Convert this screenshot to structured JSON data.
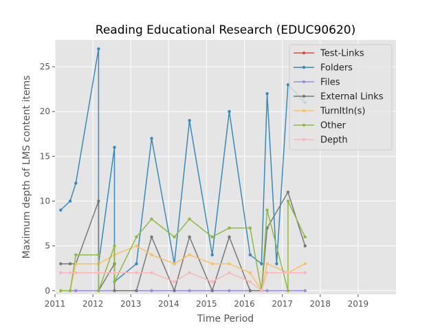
{
  "chart_data": {
    "type": "line",
    "title": "Reading Educational Research (EDUC90620)",
    "xlabel": "Time Period",
    "ylabel": "Maximum depth of LMS content items",
    "xlim": [
      2011.0,
      2020.0
    ],
    "ylim": [
      -0.4,
      28.0
    ],
    "xticks": [
      2011,
      2012,
      2013,
      2014,
      2015,
      2016,
      2017,
      2018,
      2019
    ],
    "yticks": [
      0,
      5,
      10,
      15,
      20,
      25
    ],
    "grid": true,
    "legend_position": "top-right",
    "series": [
      {
        "name": "Test-Links",
        "color": "#E24A33",
        "x": [
          2011.55,
          2012.15
        ],
        "y": [
          0,
          0
        ]
      },
      {
        "name": "Folders",
        "color": "#348ABD",
        "x": [
          2011.15,
          2011.4,
          2011.55,
          2012.15,
          2012.15,
          2012.57,
          2012.57,
          2013.15,
          2013.55,
          2014.15,
          2014.55,
          2015.15,
          2015.6,
          2016.15,
          2016.45,
          2016.6,
          2016.85,
          2017.15,
          2017.6
        ],
        "y": [
          9,
          10,
          12,
          27,
          3,
          16,
          1,
          3,
          17,
          3,
          19,
          4,
          20,
          4,
          3,
          22,
          3,
          23,
          21
        ]
      },
      {
        "name": "Files",
        "color": "#988ED5",
        "x": [
          2011.15,
          2011.4,
          2011.55,
          2012.15,
          2012.57,
          2013.15,
          2013.55,
          2014.15,
          2014.55,
          2015.15,
          2015.6,
          2016.15,
          2016.45,
          2016.6,
          2017.15,
          2017.6
        ],
        "y": [
          0,
          0,
          0,
          0,
          0,
          0,
          0,
          0,
          0,
          0,
          0,
          0,
          0,
          0,
          0,
          0
        ]
      },
      {
        "name": "External Links",
        "color": "#777777",
        "x": [
          2011.15,
          2011.4,
          2011.55,
          2012.15,
          2012.15,
          2012.57,
          2012.57,
          2013.15,
          2013.55,
          2014.15,
          2014.55,
          2015.15,
          2015.6,
          2016.15,
          2016.45,
          2016.6,
          2017.15,
          2017.6
        ],
        "y": [
          3,
          3,
          3,
          10,
          0,
          3,
          0,
          0,
          6,
          0,
          6,
          0,
          6,
          0,
          0,
          7,
          11,
          5
        ]
      },
      {
        "name": "TurnItIn(s)",
        "color": "#FBC15E",
        "x": [
          2011.15,
          2011.4,
          2011.55,
          2012.15,
          2012.57,
          2013.15,
          2013.55,
          2014.15,
          2014.55,
          2015.15,
          2015.6,
          2016.15,
          2016.45,
          2016.6,
          2017.15,
          2017.6
        ],
        "y": [
          0,
          0,
          3,
          3,
          4,
          5,
          4,
          3,
          4,
          3,
          3,
          2,
          0,
          3,
          2,
          3
        ]
      },
      {
        "name": "Other",
        "color": "#8EBA42",
        "x": [
          2011.15,
          2011.4,
          2011.55,
          2012.15,
          2012.15,
          2012.57,
          2012.57,
          2013.15,
          2013.55,
          2014.15,
          2014.55,
          2015.15,
          2015.6,
          2016.15,
          2016.45,
          2016.6,
          2017.15,
          2017.15,
          2017.6
        ],
        "y": [
          0,
          0,
          4,
          4,
          0,
          5,
          1,
          6,
          8,
          6,
          8,
          6,
          7,
          7,
          0,
          9,
          0,
          10,
          6
        ]
      },
      {
        "name": "Depth",
        "color": "#FFB5B8",
        "x": [
          2011.15,
          2011.4,
          2011.55,
          2012.15,
          2012.57,
          2013.15,
          2013.55,
          2014.15,
          2014.55,
          2015.15,
          2015.6,
          2016.15,
          2016.45,
          2016.6,
          2017.15,
          2017.6
        ],
        "y": [
          2,
          2,
          2,
          2,
          2,
          2,
          2,
          1,
          2,
          1,
          2,
          1,
          0,
          2,
          2,
          2
        ]
      }
    ]
  }
}
